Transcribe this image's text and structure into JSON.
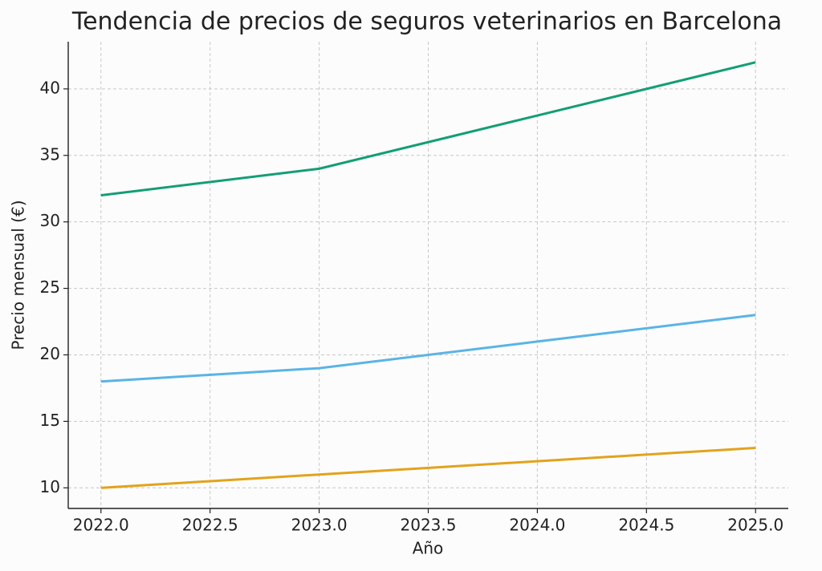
{
  "chart_data": {
    "type": "line",
    "title": "Tendencia de precios de seguros veterinarios en Barcelona",
    "x_label": "Año",
    "y_label": "Precio mensual (€)",
    "x": [
      2022,
      2023,
      2024,
      2025
    ],
    "series": [
      {
        "color": "#139e74",
        "values": [
          32,
          34,
          38,
          42
        ]
      },
      {
        "color": "#5ab4e5",
        "values": [
          18,
          19,
          21,
          23
        ]
      },
      {
        "color": "#e2a31c",
        "values": [
          10,
          11,
          12,
          13
        ]
      }
    ],
    "xlim": [
      2021.85,
      2025.15
    ],
    "xticks": [
      {
        "value": 2022,
        "label": "2022.0"
      },
      {
        "value": 2022.5,
        "label": "2022.5"
      },
      {
        "value": 2023,
        "label": "2023.0"
      },
      {
        "value": 2023.5,
        "label": "2023.5"
      },
      {
        "value": 2024,
        "label": "2024.0"
      },
      {
        "value": 2024.5,
        "label": "2024.5"
      },
      {
        "value": 2025,
        "label": "2025.0"
      }
    ],
    "ylim": [
      8.45,
      43.55
    ],
    "yticks": [
      10,
      15,
      20,
      25,
      30,
      35,
      40
    ],
    "grid": true
  }
}
